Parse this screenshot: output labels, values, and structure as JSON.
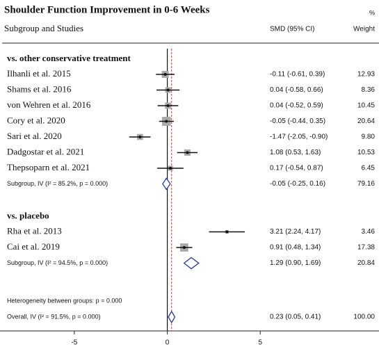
{
  "chart_data": {
    "type": "forest",
    "title": "Shoulder Function Improvement in 0-6 Weeks",
    "column_label": "Subgroup and Studies",
    "effect_label": "SMD (95% CI)",
    "weight_unit": "%",
    "weight_label": "Weight",
    "xlim": [
      -8.7,
      11.2
    ],
    "xticks": [
      -5,
      0,
      5
    ],
    "box_color": "#a9a9a9",
    "diamond_color": "#2b3a8f",
    "overall_line_color": "#d33a2c",
    "groups": [
      {
        "name": "vs. other conservative treatment",
        "studies": [
          {
            "name": "Ilhanli et al. 2015",
            "smd": -0.11,
            "ci": [
              -0.61,
              0.39
            ],
            "label": "-0.11 (-0.61, 0.39)",
            "weight": 12.93
          },
          {
            "name": "Shams et al. 2016",
            "smd": 0.04,
            "ci": [
              -0.58,
              0.66
            ],
            "label": "0.04 (-0.58, 0.66)",
            "weight": 8.36
          },
          {
            "name": "von Wehren et al. 2016",
            "smd": 0.04,
            "ci": [
              -0.52,
              0.59
            ],
            "label": "0.04 (-0.52, 0.59)",
            "weight": 10.45
          },
          {
            "name": "Cory et al. 2020",
            "smd": -0.05,
            "ci": [
              -0.44,
              0.35
            ],
            "label": "-0.05 (-0.44, 0.35)",
            "weight": 20.64
          },
          {
            "name": "Sari et al. 2020",
            "smd": -1.47,
            "ci": [
              -2.05,
              -0.9
            ],
            "label": "-1.47 (-2.05, -0.90)",
            "weight": 9.8,
            "weight_label": "9.80"
          },
          {
            "name": "Dadgostar et al. 2021",
            "smd": 1.08,
            "ci": [
              0.53,
              1.63
            ],
            "label": "1.08 (0.53, 1.63)",
            "weight": 10.53
          },
          {
            "name": "Thepsoparn et al. 2021",
            "smd": 0.17,
            "ci": [
              -0.54,
              0.87
            ],
            "label": "0.17 (-0.54, 0.87)",
            "weight": 6.45
          }
        ],
        "subgroup": {
          "name": "Subgroup, IV (I² = 85.2%, p = 0.000)",
          "smd": -0.05,
          "ci": [
            -0.25,
            0.16
          ],
          "label": "-0.05 (-0.25, 0.16)",
          "weight": 79.16
        }
      },
      {
        "name": "vs. placebo",
        "studies": [
          {
            "name": "Rha et al. 2013",
            "smd": 3.21,
            "ci": [
              2.24,
              4.17
            ],
            "label": "3.21 (2.24, 4.17)",
            "weight": 3.46
          },
          {
            "name": "Cai et al. 2019",
            "smd": 0.91,
            "ci": [
              0.48,
              1.34
            ],
            "label": "0.91 (0.48, 1.34)",
            "weight": 17.38
          }
        ],
        "subgroup": {
          "name": "Subgroup, IV (I² = 94.5%, p = 0.000)",
          "smd": 1.29,
          "ci": [
            0.9,
            1.69
          ],
          "label": "1.29 (0.90, 1.69)",
          "weight": 20.84
        }
      }
    ],
    "heterogeneity": "Heterogeneity between groups: p = 0.000",
    "overall": {
      "name": "Overall, IV (I² = 91.5%, p = 0.000)",
      "smd": 0.23,
      "ci": [
        0.05,
        0.41
      ],
      "label": "0.23 (0.05, 0.41)",
      "weight": 100,
      "weight_label": "100.00"
    }
  }
}
